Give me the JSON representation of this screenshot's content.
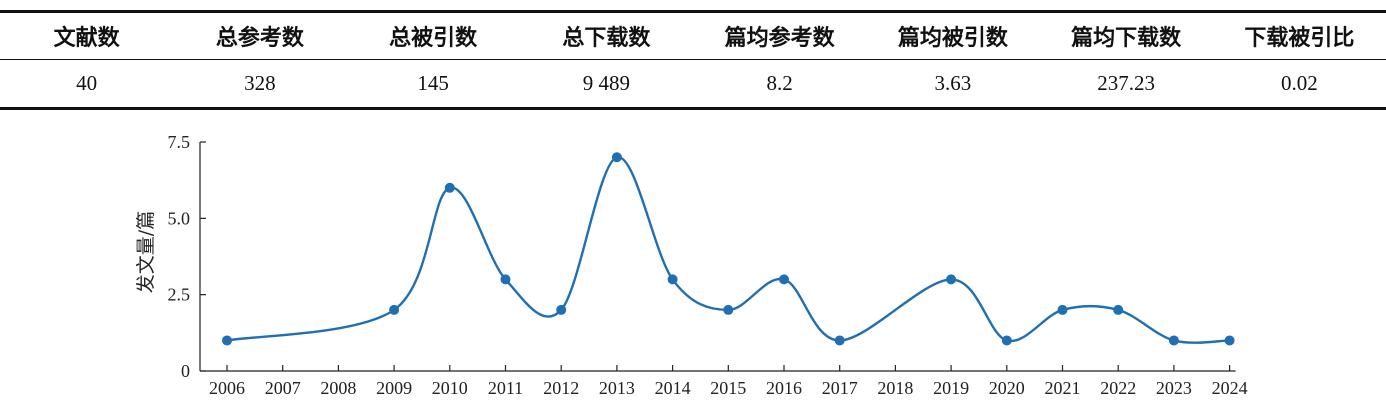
{
  "stats": {
    "headers": [
      "文献数",
      "总参考数",
      "总被引数",
      "总下载数",
      "篇均参考数",
      "篇均被引数",
      "篇均下载数",
      "下载被引比"
    ],
    "values": [
      "40",
      "328",
      "145",
      "9 489",
      "8.2",
      "3.63",
      "237.23",
      "0.02"
    ]
  },
  "chart_data": {
    "type": "line",
    "ylabel": "发文量/篇",
    "xlabel": "",
    "x": [
      "2006",
      "2007",
      "2008",
      "2009",
      "2010",
      "2011",
      "2012",
      "2013",
      "2014",
      "2015",
      "2016",
      "2017",
      "2018",
      "2019",
      "2020",
      "2021",
      "2022",
      "2023",
      "2024"
    ],
    "series": [
      {
        "values": [
          1,
          null,
          null,
          2,
          6,
          3,
          2,
          7,
          3,
          2,
          3,
          1,
          null,
          3,
          1,
          2,
          2,
          1,
          1
        ]
      }
    ],
    "yticks": [
      "0",
      "2.5",
      "5.0",
      "7.5"
    ],
    "ylim": [
      0,
      7.5
    ],
    "grid": false,
    "line_color": "#1f6fb2"
  }
}
